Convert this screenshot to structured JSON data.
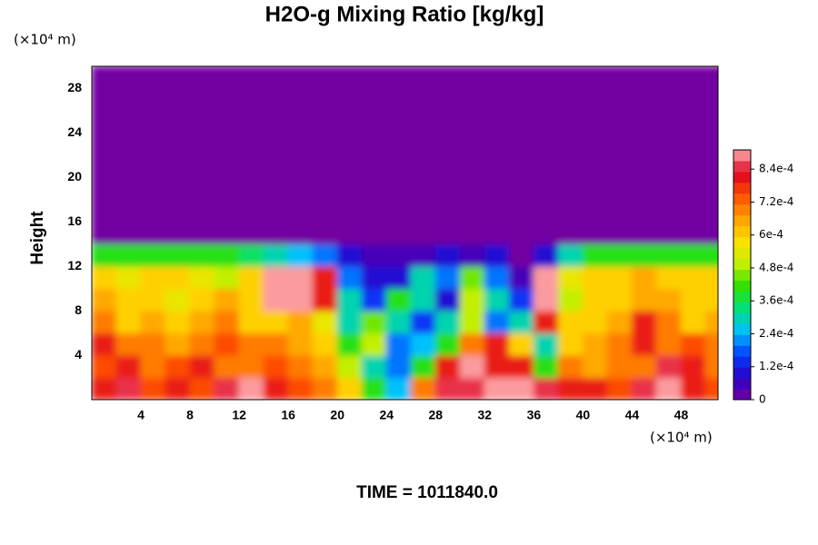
{
  "chart_data": {
    "type": "heatmap",
    "title": "H2O-g Mixing Ratio [kg/kg]",
    "y_label": "Height",
    "y_unit": "(×10⁴ m)",
    "x_unit": "(×10⁴ m)",
    "footer": "TIME = 1011840.0",
    "xlim": [
      0,
      51
    ],
    "ylim": [
      0,
      30
    ],
    "xticks": [
      4,
      8,
      12,
      16,
      20,
      24,
      28,
      32,
      36,
      40,
      44,
      48
    ],
    "yticks": [
      4,
      8,
      12,
      16,
      20,
      24,
      28
    ],
    "x": [
      1,
      3,
      5,
      7,
      9,
      11,
      13,
      15,
      17,
      19,
      21,
      23,
      25,
      27,
      29,
      31,
      33,
      35,
      37,
      39,
      41,
      43,
      45,
      47,
      49,
      51
    ],
    "y": [
      1,
      3,
      5,
      7,
      9,
      11,
      13,
      15,
      17,
      19,
      21,
      23,
      25,
      27,
      29
    ],
    "z": [
      [
        0.0008,
        0.00085,
        0.00075,
        0.0008,
        0.00075,
        0.00085,
        0.0009,
        0.0008,
        0.00075,
        0.0007,
        0.0006,
        0.0004,
        0.00025,
        0.0007,
        0.00085,
        0.00085,
        0.0009,
        0.0009,
        0.00085,
        0.0008,
        0.0008,
        0.00075,
        0.00085,
        0.0009,
        0.0008,
        0.00075
      ],
      [
        0.00075,
        0.0008,
        0.0007,
        0.00075,
        0.0008,
        0.0007,
        0.0007,
        0.00075,
        0.0007,
        0.00065,
        0.0005,
        0.0003,
        0.0002,
        0.0004,
        0.0008,
        0.0009,
        0.0008,
        0.0008,
        0.0004,
        0.0007,
        0.00065,
        0.0007,
        0.0007,
        0.00085,
        0.0008,
        0.0007
      ],
      [
        0.0008,
        0.0007,
        0.0007,
        0.00065,
        0.0007,
        0.00075,
        0.0007,
        0.0007,
        0.00065,
        0.0006,
        0.0004,
        0.0005,
        0.0002,
        0.00025,
        0.0004,
        0.0007,
        0.0008,
        0.0006,
        0.0003,
        0.0006,
        0.00065,
        0.0007,
        0.0008,
        0.0007,
        0.00075,
        0.0007
      ],
      [
        0.0007,
        0.0006,
        0.00065,
        0.0006,
        0.00065,
        0.0007,
        0.0006,
        0.0006,
        0.00065,
        0.00055,
        0.0003,
        0.00045,
        0.0003,
        0.00015,
        0.0003,
        0.0005,
        0.0002,
        0.0003,
        0.0008,
        0.0006,
        0.0006,
        0.00065,
        0.0008,
        0.0007,
        0.0006,
        0.00065
      ],
      [
        0.00065,
        0.0006,
        0.0006,
        0.00055,
        0.0006,
        0.00065,
        0.0006,
        0.0009,
        0.0009,
        0.0008,
        0.0003,
        0.00015,
        0.0004,
        0.0003,
        0.0001,
        0.0005,
        0.0003,
        0.00015,
        0.0009,
        0.0005,
        0.0006,
        0.0006,
        0.00065,
        0.00065,
        0.0006,
        0.0006
      ],
      [
        0.0006,
        0.00055,
        0.0006,
        0.0006,
        0.00055,
        0.0005,
        0.0006,
        0.0009,
        0.0009,
        0.0008,
        0.0002,
        0.0001,
        0.0001,
        0.0003,
        0.0002,
        0.00045,
        0.0002,
        5e-05,
        0.0009,
        0.00055,
        0.0006,
        0.0006,
        0.00065,
        0.0006,
        0.0006,
        0.0006
      ],
      [
        0.0004,
        0.0004,
        0.0004,
        0.0004,
        0.0004,
        0.0004,
        0.00035,
        0.0003,
        0.00025,
        0.0002,
        0.0001,
        5e-05,
        5e-05,
        5e-05,
        0.0001,
        5e-05,
        0.0001,
        0,
        0.0001,
        0.0003,
        0.0004,
        0.0004,
        0.0004,
        0.0004,
        0.0004,
        0.0004
      ],
      [
        0,
        0,
        0,
        0,
        0,
        0,
        0,
        0,
        0,
        0,
        0,
        0,
        0,
        0,
        0,
        0,
        0,
        0,
        0,
        0,
        0,
        0,
        0,
        0,
        0,
        0
      ],
      [
        0,
        0,
        0,
        0,
        0,
        0,
        0,
        0,
        0,
        0,
        0,
        0,
        0,
        0,
        0,
        0,
        0,
        0,
        0,
        0,
        0,
        0,
        0,
        0,
        0,
        0
      ],
      [
        0,
        0,
        0,
        0,
        0,
        0,
        0,
        0,
        0,
        0,
        0,
        0,
        0,
        0,
        0,
        0,
        0,
        0,
        0,
        0,
        0,
        0,
        0,
        0,
        0,
        0
      ],
      [
        0,
        0,
        0,
        0,
        0,
        0,
        0,
        0,
        0,
        0,
        0,
        0,
        0,
        0,
        0,
        0,
        0,
        0,
        0,
        0,
        0,
        0,
        0,
        0,
        0,
        0
      ],
      [
        0,
        0,
        0,
        0,
        0,
        0,
        0,
        0,
        0,
        0,
        0,
        0,
        0,
        0,
        0,
        0,
        0,
        0,
        0,
        0,
        0,
        0,
        0,
        0,
        0,
        0
      ],
      [
        0,
        0,
        0,
        0,
        0,
        0,
        0,
        0,
        0,
        0,
        0,
        0,
        0,
        0,
        0,
        0,
        0,
        0,
        0,
        0,
        0,
        0,
        0,
        0,
        0,
        0
      ],
      [
        0,
        0,
        0,
        0,
        0,
        0,
        0,
        0,
        0,
        0,
        0,
        0,
        0,
        0,
        0,
        0,
        0,
        0,
        0,
        0,
        0,
        0,
        0,
        0,
        0,
        0
      ],
      [
        0,
        0,
        0,
        0,
        0,
        0,
        0,
        0,
        0,
        0,
        0,
        0,
        0,
        0,
        0,
        0,
        0,
        0,
        0,
        0,
        0,
        0,
        0,
        0,
        0,
        0
      ]
    ],
    "clim": [
      0,
      0.00091
    ],
    "cticks": [
      0,
      {
        "value": 0.00012,
        "label": "1.2e-4"
      },
      {
        "value": 0.00024,
        "label": "2.4e-4"
      },
      {
        "value": 0.00036,
        "label": "3.6e-4"
      },
      {
        "value": 0.00048,
        "label": "4.8e-4"
      },
      {
        "value": 0.0006,
        "label": "6e-4"
      },
      {
        "value": 0.00072,
        "label": "7.2e-4"
      },
      {
        "value": 0.00084,
        "label": "8.4e-4"
      }
    ],
    "colors": [
      "#7300a0",
      "#2a00c8",
      "#0040ff",
      "#00c0ff",
      "#00e080",
      "#30e000",
      "#c0f000",
      "#ffe000",
      "#ffa000",
      "#ff5000",
      "#e00020",
      "#ffb0b0"
    ]
  }
}
